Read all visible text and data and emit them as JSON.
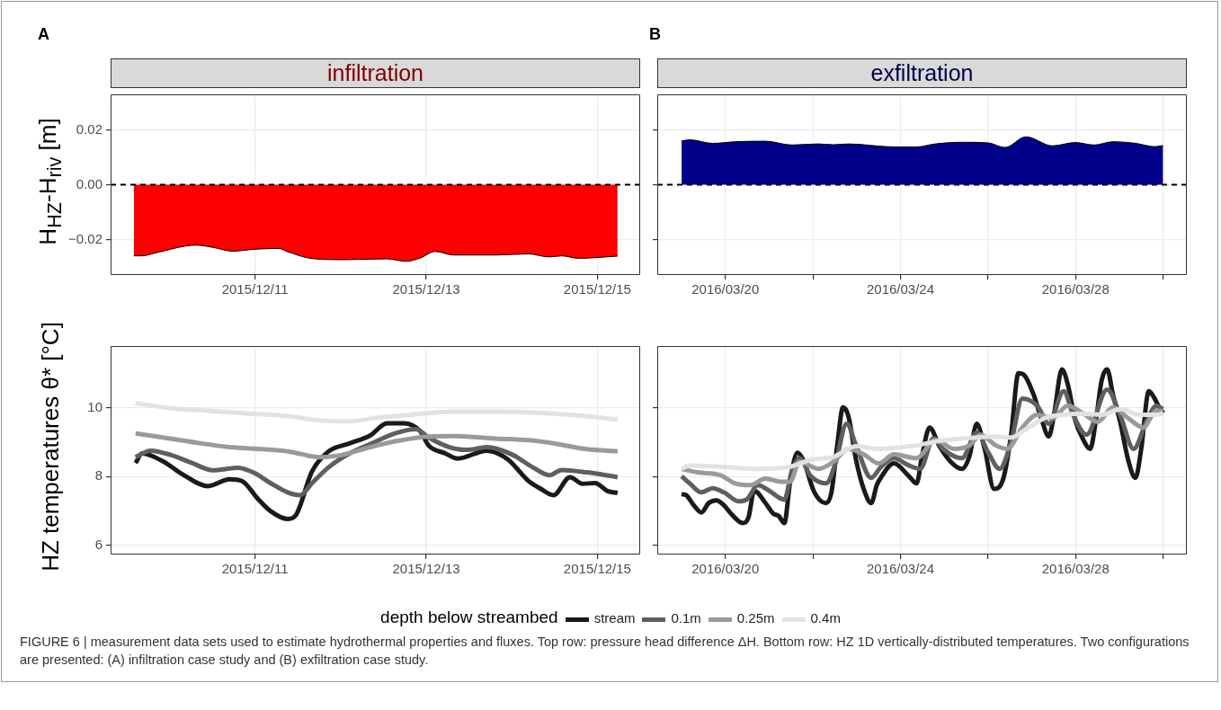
{
  "chart_data": [
    {
      "type": "area",
      "title": "infiltration",
      "ylabel": "H$_{HZ}$-H$_{riv}$ [m]",
      "annotations": [
        "A"
      ],
      "series": [
        {
          "color": "#ff0000",
          "x": [
            "2015-12-09T14:00",
            "2015-12-09T16:20",
            "2015-12-09T19:50",
            "2015-12-10T07:30",
            "2015-12-10T12:10",
            "2015-12-10T17:50",
            "2015-12-10T23:50",
            "2015-12-11T06:40",
            "2015-12-11T09:10",
            "2015-12-11T16:00",
            "2015-12-12T01:20",
            "2015-12-12T13:00",
            "2015-12-12T18:20",
            "2015-12-12T22:20",
            "2015-12-13T02:30",
            "2015-12-13T07:40",
            "2015-12-13T19:20",
            "2015-12-14T04:40",
            "2015-12-14T10:30",
            "2015-12-14T14:00",
            "2015-12-14T18:40",
            "2015-12-15T05:40"
          ],
          "values": [
            -0.026,
            -0.026,
            -0.025,
            -0.0221,
            -0.0229,
            -0.0243,
            -0.0236,
            -0.0233,
            -0.0245,
            -0.027,
            -0.0274,
            -0.0271,
            -0.028,
            -0.0268,
            -0.0244,
            -0.0257,
            -0.0257,
            -0.0253,
            -0.0264,
            -0.026,
            -0.0269,
            -0.0261
          ]
        }
      ],
      "xlim": [
        "2015-12-09T07:30",
        "2015-12-15T12:00"
      ],
      "xticks": [
        {
          "value": "2015-12-11",
          "label": "2015/12/11"
        },
        {
          "value": "2015-12-13",
          "label": "2015/12/13"
        },
        {
          "value": "2015-12-15",
          "label": "2015/12/15"
        }
      ],
      "ylim": [
        -0.033,
        0.033
      ],
      "yticks": [
        {
          "value": -0.02,
          "label": "−0.02"
        },
        {
          "value": 0,
          "label": "0.00"
        },
        {
          "value": 0.02,
          "label": "0.02"
        }
      ],
      "ref_lines": [
        {
          "axis": "y",
          "value": 0,
          "color": "#000000",
          "line_style": "dashed"
        }
      ],
      "grid": true,
      "marker": "none"
    },
    {
      "type": "area",
      "title": "exfiltration",
      "annotations": [
        "B"
      ],
      "series": [
        {
          "color": "#00008b",
          "x": [
            "2016-03-19T00:00",
            "2016-03-19T04:30",
            "2016-03-19T17:00",
            "2016-03-20T05:20",
            "2016-03-20T22:00",
            "2016-03-21T12:30",
            "2016-03-22T03:00",
            "2016-03-22T11:20",
            "2016-03-22T19:30",
            "2016-03-23T20:20",
            "2016-03-24T08:50",
            "2016-03-24T19:10",
            "2016-03-25T09:40",
            "2016-03-26T00:00",
            "2016-03-26T09:20",
            "2016-03-26T20:50",
            "2016-03-27T11:20",
            "2016-03-27T23:50",
            "2016-03-28T10:10",
            "2016-03-28T20:30",
            "2016-03-29T09:00",
            "2016-03-29T19:20",
            "2016-03-30T00:00"
          ],
          "values": [
            0.016,
            0.0164,
            0.0151,
            0.0157,
            0.0159,
            0.0145,
            0.0149,
            0.0146,
            0.0149,
            0.0138,
            0.0138,
            0.0149,
            0.0155,
            0.0153,
            0.0136,
            0.0175,
            0.0142,
            0.0154,
            0.0145,
            0.0157,
            0.0151,
            0.0139,
            0.0143
          ]
        }
      ],
      "xlim": [
        "2016-03-18T10:40",
        "2016-03-30T13:00"
      ],
      "xticks": [
        {
          "value": "2016-03-20",
          "label": "2016/03/20"
        },
        {
          "value": "2016-03-22",
          "label": null
        },
        {
          "value": "2016-03-24",
          "label": "2016/03/24"
        },
        {
          "value": "2016-03-26",
          "label": null
        },
        {
          "value": "2016-03-28",
          "label": "2016/03/28"
        },
        {
          "value": "2016-03-30",
          "label": null
        }
      ],
      "ylim": [
        -0.033,
        0.033
      ],
      "yticks": [
        {
          "value": -0.02,
          "label": null
        },
        {
          "value": 0,
          "label": null
        },
        {
          "value": 0.02,
          "label": null
        }
      ],
      "tick_labels": "x",
      "ref_lines": [
        {
          "axis": "y",
          "value": 0,
          "color": "#000000",
          "line_style": "dashed"
        }
      ],
      "grid": true,
      "marker": "none"
    },
    {
      "type": "line",
      "ylabel": "HZ temperatures θ* [°C]",
      "legend": "bottom",
      "legend_title": "depth below streambed",
      "series": [
        {
          "name": "stream",
          "color": "#1a1a1a",
          "x": [
            "2015-12-09T14:30",
            "2015-12-09T16:20",
            "2015-12-09T22:10",
            "2015-12-10T04:00",
            "2015-12-10T10:50",
            "2015-12-10T16:50",
            "2015-12-10T20:20",
            "2015-12-11T00:50",
            "2015-12-11T04:20",
            "2015-12-11T09:10",
            "2015-12-11T11:30",
            "2015-12-11T16:00",
            "2015-12-11T20:40",
            "2015-12-12T02:30",
            "2015-12-12T08:20",
            "2015-12-12T13:00",
            "2015-12-12T17:40",
            "2015-12-12T22:20",
            "2015-12-13T00:40",
            "2015-12-13T05:20",
            "2015-12-13T08:50",
            "2015-12-13T17:00",
            "2015-12-13T22:50",
            "2015-12-14T04:40",
            "2015-12-14T08:10",
            "2015-12-14T11:40",
            "2015-12-14T16:20",
            "2015-12-14T19:50",
            "2015-12-14T23:20",
            "2015-12-15T02:50",
            "2015-12-15T05:40"
          ],
          "values": [
            8.39,
            8.67,
            8.44,
            8.04,
            7.72,
            7.92,
            7.87,
            7.35,
            7.0,
            6.77,
            6.89,
            8.15,
            8.73,
            8.96,
            9.19,
            9.54,
            9.54,
            9.31,
            8.9,
            8.67,
            8.52,
            8.75,
            8.5,
            7.87,
            7.64,
            7.46,
            7.98,
            7.79,
            7.81,
            7.58,
            7.52
          ]
        },
        {
          "name": "0.1m",
          "color": "#5f5f5f",
          "x": [
            "2015-12-09T14:30",
            "2015-12-09T18:40",
            "2015-12-10T00:30",
            "2015-12-10T06:20",
            "2015-12-10T12:10",
            "2015-12-10T19:10",
            "2015-12-10T23:50",
            "2015-12-11T04:20",
            "2015-12-11T09:10",
            "2015-12-11T12:40",
            "2015-12-11T16:00",
            "2015-12-11T20:40",
            "2015-12-12T02:30",
            "2015-12-12T08:20",
            "2015-12-12T15:20",
            "2015-12-12T21:10",
            "2015-12-13T00:40",
            "2015-12-13T06:30",
            "2015-12-13T11:10",
            "2015-12-13T17:00",
            "2015-12-14T00:00",
            "2015-12-14T05:50",
            "2015-12-14T10:30",
            "2015-12-14T14:00",
            "2015-12-14T21:00",
            "2015-12-15T05:40"
          ],
          "values": [
            8.56,
            8.75,
            8.62,
            8.39,
            8.18,
            8.25,
            8.1,
            7.81,
            7.54,
            7.46,
            7.81,
            8.27,
            8.67,
            8.94,
            9.25,
            9.37,
            9.13,
            8.85,
            8.77,
            8.85,
            8.64,
            8.27,
            8.04,
            8.19,
            8.12,
            7.98
          ]
        },
        {
          "name": "0.25m",
          "color": "#9a9a9a",
          "x": [
            "2015-12-09T14:30",
            "2015-12-09T22:10",
            "2015-12-10T07:30",
            "2015-12-10T16:50",
            "2015-12-11T02:10",
            "2015-12-11T09:10",
            "2015-12-11T18:20",
            "2015-12-12T00:10",
            "2015-12-12T08:20",
            "2015-12-12T15:20",
            "2015-12-13T00:40",
            "2015-12-13T07:40",
            "2015-12-13T19:20",
            "2015-12-14T04:40",
            "2015-12-14T11:40",
            "2015-12-14T21:00",
            "2015-12-15T05:40"
          ],
          "values": [
            9.25,
            9.13,
            8.98,
            8.85,
            8.79,
            8.73,
            8.56,
            8.62,
            8.85,
            9.02,
            9.16,
            9.17,
            9.1,
            9.05,
            8.96,
            8.79,
            8.73
          ]
        },
        {
          "name": "0.4m",
          "color": "#e2e2e2",
          "x": [
            "2015-12-09T14:30",
            "2015-12-10T00:30",
            "2015-12-10T09:50",
            "2015-12-10T21:30",
            "2015-12-11T09:10",
            "2015-12-11T18:20",
            "2015-12-12T02:30",
            "2015-12-12T10:40",
            "2015-12-12T20:00",
            "2015-12-13T07:40",
            "2015-12-13T19:20",
            "2015-12-14T07:00",
            "2015-12-14T18:40",
            "2015-12-15T05:40"
          ],
          "values": [
            10.12,
            9.98,
            9.91,
            9.83,
            9.75,
            9.62,
            9.6,
            9.71,
            9.79,
            9.88,
            9.88,
            9.85,
            9.77,
            9.65
          ]
        }
      ],
      "xlim": [
        "2015-12-09T07:30",
        "2015-12-15T12:00"
      ],
      "xticks": [
        {
          "value": "2015-12-11",
          "label": "2015/12/11"
        },
        {
          "value": "2015-12-13",
          "label": "2015/12/13"
        },
        {
          "value": "2015-12-15",
          "label": "2015/12/15"
        }
      ],
      "ylim": [
        5.74,
        11.78
      ],
      "yticks": [
        6,
        8,
        10
      ],
      "grid": true,
      "marker": "none",
      "line_style": "solid"
    },
    {
      "type": "line",
      "annotations": [
        "FIGURE 6 | measurement data sets used to estimate hydrothermal properties and fluxes. Top row: pressure head difference ΔH. Bottom row: HZ 1D vertically-distributed temperatures. Two configurations are presented: (A) infiltration case study and (B) exfiltration case study."
      ],
      "series": [
        {
          "color": "#1a1a1a",
          "x": [
            "2016-03-19T00:00",
            "2016-03-19T02:30",
            "2016-03-19T06:40",
            "2016-03-19T10:50",
            "2016-03-19T14:50",
            "2016-03-19T19:00",
            "2016-03-19T23:10",
            "2016-03-20T03:20",
            "2016-03-20T09:30",
            "2016-03-20T12:40",
            "2016-03-20T15:50",
            "2016-03-20T22:00",
            "2016-03-21T02:10",
            "2016-03-21T05:10",
            "2016-03-21T08:20",
            "2016-03-21T11:30",
            "2016-03-21T15:30",
            "2016-03-21T18:40",
            "2016-03-22T00:50",
            "2016-03-22T07:10",
            "2016-03-22T10:10",
            "2016-03-22T13:20",
            "2016-03-22T16:30",
            "2016-03-22T19:30",
            "2016-03-22T23:40",
            "2016-03-23T03:50",
            "2016-03-23T08:00",
            "2016-03-23T11:00",
            "2016-03-23T13:10",
            "2016-03-23T20:20",
            "2016-03-24T04:40",
            "2016-03-24T08:50",
            "2016-03-24T11:50",
            "2016-03-24T16:00",
            "2016-03-24T21:10",
            "2016-03-25T03:30",
            "2016-03-25T09:40",
            "2016-03-25T13:50",
            "2016-03-25T17:50",
            "2016-03-25T22:10",
            "2016-03-26T03:20",
            "2016-03-26T08:30",
            "2016-03-26T12:40",
            "2016-03-26T16:40",
            "2016-03-26T19:50",
            "2016-03-27T01:00",
            "2016-03-27T05:10",
            "2016-03-27T09:20",
            "2016-03-27T12:20",
            "2016-03-27T16:30",
            "2016-03-27T19:40",
            "2016-03-27T23:50",
            "2016-03-28T03:50",
            "2016-03-28T08:00",
            "2016-03-28T11:10",
            "2016-03-28T14:20",
            "2016-03-28T17:20",
            "2016-03-28T20:30",
            "2016-03-29T00:40",
            "2016-03-29T04:50",
            "2016-03-29T08:50",
            "2016-03-29T12:00",
            "2016-03-29T16:10",
            "2016-03-29T19:20",
            "2016-03-29T21:20",
            "2016-03-30T00:00"
          ],
          "values": [
            7.49,
            7.46,
            7.17,
            6.96,
            7.23,
            7.31,
            7.17,
            6.91,
            6.65,
            6.81,
            7.59,
            7.23,
            6.93,
            6.86,
            6.65,
            7.85,
            8.69,
            8.48,
            7.54,
            7.23,
            7.54,
            8.9,
            10.0,
            9.74,
            8.48,
            7.64,
            7.23,
            7.75,
            7.96,
            8.38,
            8.01,
            7.8,
            8.59,
            9.42,
            8.9,
            8.43,
            8.22,
            8.59,
            9.53,
            8.8,
            7.64,
            7.96,
            9.21,
            10.99,
            10.94,
            10.37,
            9.69,
            9.16,
            9.84,
            11.1,
            10.68,
            9.63,
            9.11,
            8.8,
            9.63,
            10.79,
            11.1,
            10.37,
            9.53,
            8.48,
            7.96,
            8.8,
            10.47,
            10.26,
            10.05,
            9.84
          ]
        },
        {
          "color": "#5f5f5f",
          "x": [
            "2016-03-19T00:00",
            "2016-03-19T04:30",
            "2016-03-19T10:50",
            "2016-03-19T17:00",
            "2016-03-19T23:10",
            "2016-03-20T07:30",
            "2016-03-20T11:40",
            "2016-03-20T17:50",
            "2016-03-21T00:00",
            "2016-03-21T08:20",
            "2016-03-21T12:30",
            "2016-03-21T16:40",
            "2016-03-21T22:50",
            "2016-03-22T07:10",
            "2016-03-22T12:20",
            "2016-03-22T18:30",
            "2016-03-22T23:40",
            "2016-03-23T08:00",
            "2016-03-23T13:10",
            "2016-03-23T20:20",
            "2016-03-24T04:40",
            "2016-03-24T10:50",
            "2016-03-24T18:10",
            "2016-03-24T23:20",
            "2016-03-25T09:40",
            "2016-03-25T17:50",
            "2016-03-26T00:10",
            "2016-03-26T06:20",
            "2016-03-26T12:40",
            "2016-03-26T18:50",
            "2016-03-27T03:00",
            "2016-03-27T09:20",
            "2016-03-27T17:30",
            "2016-03-27T22:40",
            "2016-03-28T06:00",
            "2016-03-28T17:20",
            "2016-03-29T00:40",
            "2016-03-29T07:50",
            "2016-03-29T15:10",
            "2016-03-29T20:20",
            "2016-03-30T00:00"
          ],
          "values": [
            8.01,
            7.8,
            7.54,
            7.66,
            7.54,
            7.28,
            7.33,
            7.75,
            7.59,
            7.33,
            8.17,
            8.53,
            8.01,
            7.8,
            8.38,
            9.53,
            8.9,
            7.96,
            8.27,
            8.53,
            8.32,
            8.22,
            9.11,
            8.8,
            8.53,
            9.27,
            8.69,
            8.22,
            9.0,
            10.26,
            10.05,
            9.53,
            10.47,
            9.79,
            9.21,
            10.52,
            9.74,
            8.8,
            9.63,
            10.05,
            9.95
          ]
        },
        {
          "color": "#9a9a9a",
          "x": [
            "2016-03-19T00:00",
            "2016-03-19T08:40",
            "2016-03-19T21:10",
            "2016-03-20T05:20",
            "2016-03-20T13:40",
            "2016-03-20T22:00",
            "2016-03-21T06:20",
            "2016-03-21T11:30",
            "2016-03-21T16:40",
            "2016-03-22T03:00",
            "2016-03-22T11:20",
            "2016-03-22T19:30",
            "2016-03-23T03:50",
            "2016-03-23T12:10",
            "2016-03-23T20:20",
            "2016-03-24T08:50",
            "2016-03-24T19:10",
            "2016-03-25T05:30",
            "2016-03-25T13:50",
            "2016-03-25T20:00",
            "2016-03-26T04:20",
            "2016-03-26T10:30",
            "2016-03-26T18:50",
            "2016-03-27T03:00",
            "2016-03-27T11:20",
            "2016-03-27T19:40",
            "2016-03-28T03:50",
            "2016-03-28T12:10",
            "2016-03-28T20:30",
            "2016-03-29T04:50",
            "2016-03-29T13:00",
            "2016-03-29T20:20",
            "2016-03-30T00:00"
          ],
          "values": [
            8.22,
            8.12,
            8.04,
            7.8,
            7.75,
            7.94,
            7.85,
            7.85,
            8.43,
            8.22,
            8.43,
            8.8,
            8.64,
            8.38,
            8.64,
            8.53,
            9.06,
            8.8,
            8.9,
            9.21,
            8.9,
            8.8,
            9.42,
            9.79,
            9.69,
            10.05,
            9.84,
            9.58,
            10.0,
            9.69,
            9.42,
            9.9,
            9.9
          ]
        },
        {
          "color": "#e2e2e2",
          "x": [
            "2016-03-19T00:00",
            "2016-03-19T04:30",
            "2016-03-19T19:00",
            "2016-03-20T17:50",
            "2016-03-21T10:20",
            "2016-03-21T22:50",
            "2016-03-22T11:20",
            "2016-03-22T23:40",
            "2016-03-23T12:10",
            "2016-03-24T08:50",
            "2016-03-24T21:10",
            "2016-03-25T13:50",
            "2016-03-26T02:10",
            "2016-03-26T12:40",
            "2016-03-26T20:50",
            "2016-03-27T07:10",
            "2016-03-27T17:30",
            "2016-03-28T03:50",
            "2016-03-28T14:20",
            "2016-03-29T00:40",
            "2016-03-29T11:00",
            "2016-03-29T21:20",
            "2016-03-30T00:00"
          ],
          "values": [
            8.22,
            8.32,
            8.29,
            8.22,
            8.27,
            8.48,
            8.57,
            8.88,
            8.8,
            8.9,
            9.03,
            9.11,
            9.16,
            9.13,
            9.37,
            9.69,
            9.79,
            9.82,
            9.79,
            9.95,
            9.79,
            9.79,
            9.84
          ]
        }
      ],
      "xlim": [
        "2016-03-18T10:40",
        "2016-03-30T13:00"
      ],
      "xticks": [
        {
          "value": "2016-03-20",
          "label": "2016/03/20"
        },
        {
          "value": "2016-03-22",
          "label": null
        },
        {
          "value": "2016-03-24",
          "label": "2016/03/24"
        },
        {
          "value": "2016-03-26",
          "label": null
        },
        {
          "value": "2016-03-28",
          "label": "2016/03/28"
        },
        {
          "value": "2016-03-30",
          "label": null
        }
      ],
      "ylim": [
        5.74,
        11.78
      ],
      "yticks": [
        {
          "value": 6,
          "label": null
        },
        {
          "value": 8,
          "label": null
        },
        {
          "value": 10,
          "label": null
        }
      ],
      "tick_labels": "x",
      "grid": true,
      "marker": "none",
      "line_style": "solid"
    }
  ]
}
